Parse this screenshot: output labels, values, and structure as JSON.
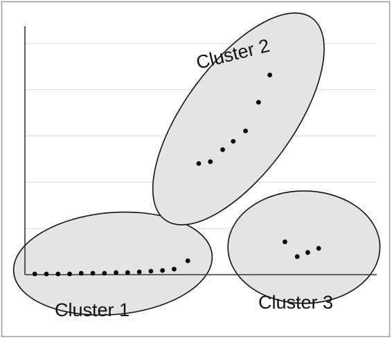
{
  "chart_data": {
    "type": "scatter",
    "title": "",
    "xlabel": "",
    "ylabel": "",
    "xlim": [
      0,
      100
    ],
    "ylim": [
      0,
      100
    ],
    "grid": true,
    "y_gridlines": [
      20,
      40,
      60,
      80,
      100
    ],
    "series": [
      {
        "name": "Cluster 1",
        "color": "#000000",
        "points": [
          {
            "x": 2.8,
            "y": 0.3
          },
          {
            "x": 6.1,
            "y": 0.3
          },
          {
            "x": 9.4,
            "y": 0.3
          },
          {
            "x": 12.7,
            "y": 0.3
          },
          {
            "x": 16.0,
            "y": 0.6
          },
          {
            "x": 19.3,
            "y": 0.6
          },
          {
            "x": 22.6,
            "y": 0.6
          },
          {
            "x": 25.9,
            "y": 0.9
          },
          {
            "x": 29.2,
            "y": 0.9
          },
          {
            "x": 32.5,
            "y": 1.2
          },
          {
            "x": 35.8,
            "y": 1.5
          },
          {
            "x": 39.1,
            "y": 1.8
          },
          {
            "x": 42.4,
            "y": 2.4
          },
          {
            "x": 46.3,
            "y": 6.0
          }
        ],
        "ellipse": {
          "cx": 25.0,
          "cy": 4.8,
          "rx": 28.3,
          "ry": 14.5,
          "rotate": -5
        }
      },
      {
        "name": "Cluster 2",
        "color": "#000000",
        "points": [
          {
            "x": 49.4,
            "y": 48.1
          },
          {
            "x": 52.7,
            "y": 48.9
          },
          {
            "x": 56.2,
            "y": 54.1
          },
          {
            "x": 59.2,
            "y": 57.7
          },
          {
            "x": 62.7,
            "y": 62.2
          },
          {
            "x": 66.4,
            "y": 74.6
          },
          {
            "x": 69.6,
            "y": 86.4
          }
        ],
        "ellipse": {
          "cx": 60.7,
          "cy": 67.4,
          "rx": 35.5,
          "ry": 15.5,
          "rotate": -54
        }
      },
      {
        "name": "Cluster 3",
        "color": "#000000",
        "points": [
          {
            "x": 73.9,
            "y": 14.2
          },
          {
            "x": 77.4,
            "y": 7.8
          },
          {
            "x": 80.4,
            "y": 9.6
          },
          {
            "x": 83.5,
            "y": 11.4
          }
        ],
        "ellipse": {
          "cx": 79.3,
          "cy": 11.9,
          "rx": 21.6,
          "ry": 16.0,
          "rotate": 0
        }
      }
    ]
  }
}
